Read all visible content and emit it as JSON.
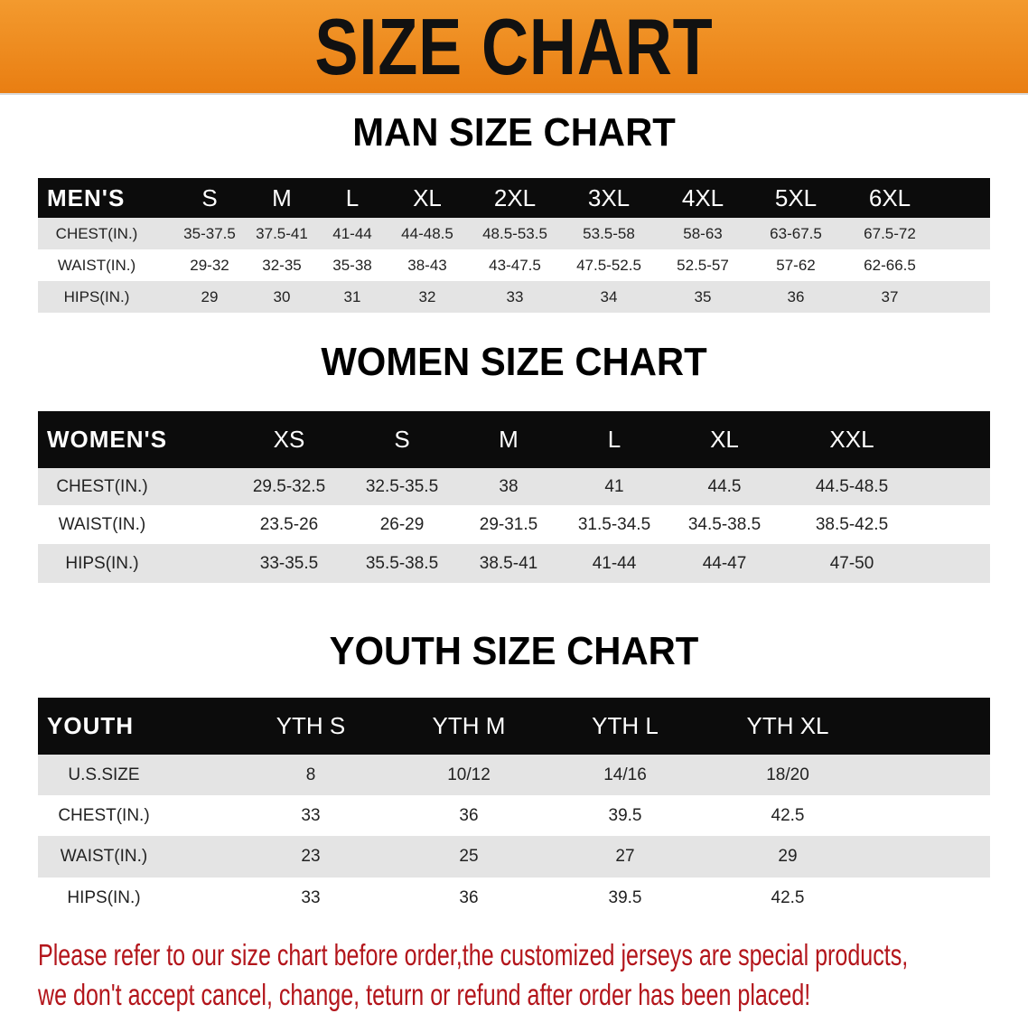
{
  "banner_title": "SIZE CHART",
  "colors": {
    "banner": "#ee8a1e",
    "header_row": "#0c0c0c",
    "stripe": "#e4e4e4",
    "notice": "#b3151b"
  },
  "men": {
    "title": "MAN SIZE CHART",
    "header": [
      "MEN'S",
      "S",
      "M",
      "L",
      "XL",
      "2XL",
      "3XL",
      "4XL",
      "5XL",
      "6XL"
    ],
    "rows": [
      [
        "CHEST(IN.)",
        "35-37.5",
        "37.5-41",
        "41-44",
        "44-48.5",
        "48.5-53.5",
        "53.5-58",
        "58-63",
        "63-67.5",
        "67.5-72"
      ],
      [
        "WAIST(IN.)",
        "29-32",
        "32-35",
        "35-38",
        "38-43",
        "43-47.5",
        "47.5-52.5",
        "52.5-57",
        "57-62",
        "62-66.5"
      ],
      [
        "HIPS(IN.)",
        "29",
        "30",
        "31",
        "32",
        "33",
        "34",
        "35",
        "36",
        "37"
      ]
    ]
  },
  "women": {
    "title": "WOMEN SIZE CHART",
    "header": [
      "WOMEN'S",
      "XS",
      "S",
      "M",
      "L",
      "XL",
      "XXL"
    ],
    "rows": [
      [
        "CHEST(IN.)",
        "29.5-32.5",
        "32.5-35.5",
        "38",
        "41",
        "44.5",
        "44.5-48.5"
      ],
      [
        "WAIST(IN.)",
        "23.5-26",
        "26-29",
        "29-31.5",
        "31.5-34.5",
        "34.5-38.5",
        "38.5-42.5"
      ],
      [
        "HIPS(IN.)",
        "33-35.5",
        "35.5-38.5",
        "38.5-41",
        "41-44",
        "44-47",
        "47-50"
      ]
    ]
  },
  "youth": {
    "title": "YOUTH SIZE CHART",
    "header": [
      "YOUTH",
      "YTH S",
      "YTH M",
      "YTH L",
      "YTH XL"
    ],
    "rows": [
      [
        "U.S.SIZE",
        "8",
        "10/12",
        "14/16",
        "18/20"
      ],
      [
        "CHEST(IN.)",
        "33",
        "36",
        "39.5",
        "42.5"
      ],
      [
        "WAIST(IN.)",
        "23",
        "25",
        "27",
        "29"
      ],
      [
        "HIPS(IN.)",
        "33",
        "36",
        "39.5",
        "42.5"
      ]
    ]
  },
  "notice": [
    "Please refer to our size chart before order,the customized jerseys are special products,",
    "we don't accept cancel, change, teturn or refund after order has been placed!"
  ]
}
